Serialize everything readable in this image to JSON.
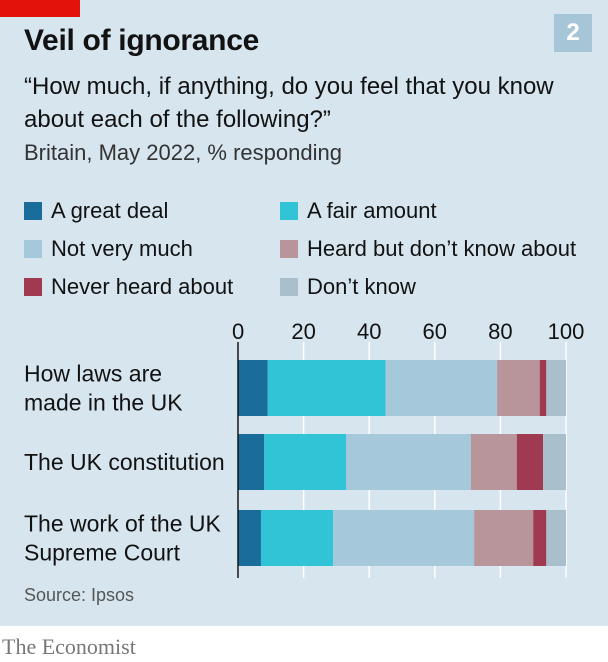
{
  "header": {
    "title": "Veil of ignorance",
    "badge": "2",
    "subtitle": "“How much, if anything, do you feel that you know about each of the following?”",
    "note": "Britain, May 2022, % responding"
  },
  "legend": [
    {
      "label": "A great deal",
      "color": "#1a6d9b"
    },
    {
      "label": "A fair amount",
      "color": "#30c4d6"
    },
    {
      "label": "Not very much",
      "color": "#a6c8db"
    },
    {
      "label": "Heard but don’t know about",
      "color": "#b8949b"
    },
    {
      "label": "Never heard about",
      "color": "#a03a51"
    },
    {
      "label": "Don’t know",
      "color": "#a9bfcc"
    }
  ],
  "chart_data": {
    "type": "bar",
    "orientation": "horizontal",
    "stacked": true,
    "xlim": [
      0,
      100
    ],
    "xticks": [
      "0",
      "20",
      "40",
      "60",
      "80",
      "100"
    ],
    "categories": [
      [
        "How laws are",
        "made in the UK"
      ],
      [
        "The UK constitution"
      ],
      [
        "The work of the UK",
        "Supreme Court"
      ]
    ],
    "series": [
      {
        "name": "A great deal",
        "values": [
          9,
          8,
          7
        ]
      },
      {
        "name": "A fair amount",
        "values": [
          36,
          25,
          22
        ]
      },
      {
        "name": "Not very much",
        "values": [
          34,
          38,
          43
        ]
      },
      {
        "name": "Heard but don’t know about",
        "values": [
          13,
          14,
          18
        ]
      },
      {
        "name": "Never heard about",
        "values": [
          2,
          8,
          4
        ]
      },
      {
        "name": "Don’t know",
        "values": [
          6,
          7,
          6
        ]
      }
    ]
  },
  "footer": {
    "source": "Source: Ipsos",
    "brand": "The Economist"
  }
}
